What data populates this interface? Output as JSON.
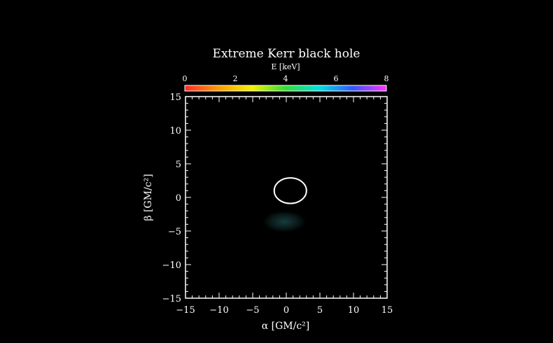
{
  "chart_data": {
    "type": "heatmap",
    "title": "Extreme Kerr black hole",
    "colorbar": {
      "label": "E [keV]",
      "range": [
        0,
        8
      ],
      "ticks": [
        "0",
        "2",
        "4",
        "6",
        "8"
      ],
      "colors": [
        "#ff2a2a",
        "#ff9a00",
        "#f2f200",
        "#33dd33",
        "#00e0e0",
        "#3355ff",
        "#ff33ff"
      ]
    },
    "xlabel": "α [GM/c²]",
    "ylabel": "β [GM/c²]",
    "xlim": [
      -15,
      15
    ],
    "ylim": [
      -15,
      15
    ],
    "xticks": [
      -15,
      -10,
      -5,
      0,
      5,
      10,
      15
    ],
    "yticks": [
      -15,
      -10,
      -5,
      0,
      5,
      10,
      15
    ],
    "xtick_labels": [
      "−15",
      "−10",
      "−5",
      "0",
      "5",
      "10",
      "15"
    ],
    "ytick_labels": [
      "−15",
      "−10",
      "−5",
      "0",
      "5",
      "10",
      "15"
    ],
    "shadow_contour": {
      "center": [
        0.6,
        1.0
      ],
      "half_width": 2.4,
      "half_height": 1.9,
      "color": "#ffffff"
    },
    "emission_blob": {
      "center": [
        -0.3,
        -3.6
      ],
      "half_width": 3.2,
      "half_height": 1.6,
      "color": "#2a6e6e"
    }
  }
}
